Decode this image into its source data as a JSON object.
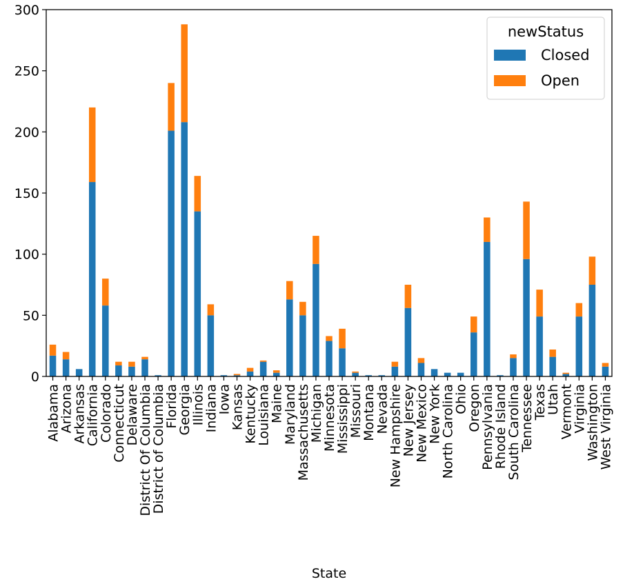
{
  "chart_data": {
    "type": "bar",
    "stacked": true,
    "title": "",
    "xlabel": "State",
    "ylabel": "",
    "ylim": [
      0,
      300
    ],
    "yticks": [
      0,
      50,
      100,
      150,
      200,
      250,
      300
    ],
    "grid": false,
    "legend": {
      "title": "newStatus",
      "position": "top-right"
    },
    "categories": [
      "Alabama",
      "Arizona",
      "Arkansas",
      "California",
      "Colorado",
      "Connecticut",
      "Delaware",
      "District Of Columbia",
      "District of Columbia",
      "Florida",
      "Georgia",
      "Illinois",
      "Indiana",
      "Iowa",
      "Kansas",
      "Kentucky",
      "Louisiana",
      "Maine",
      "Maryland",
      "Massachusetts",
      "Michigan",
      "Minnesota",
      "Mississippi",
      "Missouri",
      "Montana",
      "Nevada",
      "New Hampshire",
      "New Jersey",
      "New Mexico",
      "New York",
      "North Carolina",
      "Ohio",
      "Oregon",
      "Pennsylvania",
      "Rhode Island",
      "South Carolina",
      "Tennessee",
      "Texas",
      "Utah",
      "Vermont",
      "Virginia",
      "Washington",
      "West Virginia"
    ],
    "series": [
      {
        "name": "Closed",
        "color": "#1f77b4",
        "values": [
          17,
          14,
          6,
          159,
          58,
          9,
          8,
          14,
          1,
          201,
          208,
          135,
          50,
          1,
          1,
          4,
          12,
          3,
          63,
          50,
          92,
          29,
          23,
          3,
          1,
          1,
          8,
          56,
          11,
          6,
          3,
          3,
          36,
          110,
          1,
          15,
          96,
          49,
          16,
          2,
          49,
          75,
          8
        ]
      },
      {
        "name": "Open",
        "color": "#ff7f0e",
        "values": [
          9,
          6,
          0,
          61,
          22,
          3,
          4,
          2,
          0,
          39,
          80,
          29,
          9,
          0,
          1,
          3,
          1,
          2,
          15,
          11,
          23,
          4,
          16,
          1,
          0,
          0,
          4,
          19,
          4,
          0,
          0,
          0,
          13,
          20,
          0,
          3,
          47,
          22,
          6,
          1,
          11,
          23,
          3
        ]
      }
    ]
  }
}
